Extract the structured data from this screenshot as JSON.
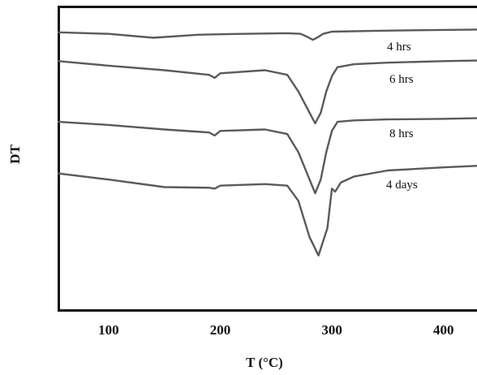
{
  "chart_data": {
    "type": "line",
    "title": "",
    "xlabel": "T (°C)",
    "ylabel": "DT",
    "xlim": [
      55,
      430
    ],
    "ylim": [
      -100,
      0
    ],
    "xticks": [
      100,
      200,
      300,
      400
    ],
    "grid": false,
    "legend": "inline labels at right end of each curve",
    "y_tick_labels_shown": false,
    "series": [
      {
        "name": "4 hrs",
        "x": [
          55,
          100,
          140,
          180,
          220,
          260,
          272,
          278,
          283,
          288,
          292,
          300,
          340,
          380,
          430
        ],
        "y": [
          -8.5,
          -9,
          -10.3,
          -9.3,
          -9,
          -8.8,
          -9,
          -10,
          -11,
          -10,
          -9,
          -8.3,
          -8,
          -7.8,
          -7.6
        ]
      },
      {
        "name": "6 hrs",
        "x": [
          55,
          100,
          150,
          190,
          195,
          200,
          240,
          260,
          270,
          280,
          285,
          290,
          295,
          300,
          305,
          320,
          350,
          400,
          430
        ],
        "y": [
          -18,
          -19.5,
          -21,
          -22.5,
          -23.5,
          -22,
          -21,
          -22.5,
          -28,
          -35,
          -38.5,
          -35,
          -28,
          -23,
          -20,
          -19,
          -18.5,
          -18,
          -17.8
        ]
      },
      {
        "name": "8 hrs",
        "x": [
          55,
          100,
          150,
          190,
          195,
          200,
          240,
          260,
          270,
          280,
          285,
          290,
          295,
          300,
          305,
          320,
          350,
          400,
          430
        ],
        "y": [
          -38,
          -39,
          -40.5,
          -41.5,
          -42.5,
          -41,
          -40.5,
          -42,
          -48,
          -57,
          -61.5,
          -57,
          -48,
          -41,
          -38,
          -37.5,
          -37.2,
          -37,
          -36.8
        ]
      },
      {
        "name": "4 days",
        "x": [
          55,
          100,
          150,
          190,
          195,
          200,
          240,
          260,
          270,
          280,
          288,
          296,
          300,
          303,
          308,
          320,
          350,
          400,
          430
        ],
        "y": [
          -55,
          -57,
          -59.5,
          -59.7,
          -60,
          -59,
          -58.5,
          -59,
          -64,
          -76,
          -82,
          -73,
          -60,
          -61,
          -58,
          -56,
          -54,
          -53,
          -52.5
        ]
      }
    ]
  }
}
